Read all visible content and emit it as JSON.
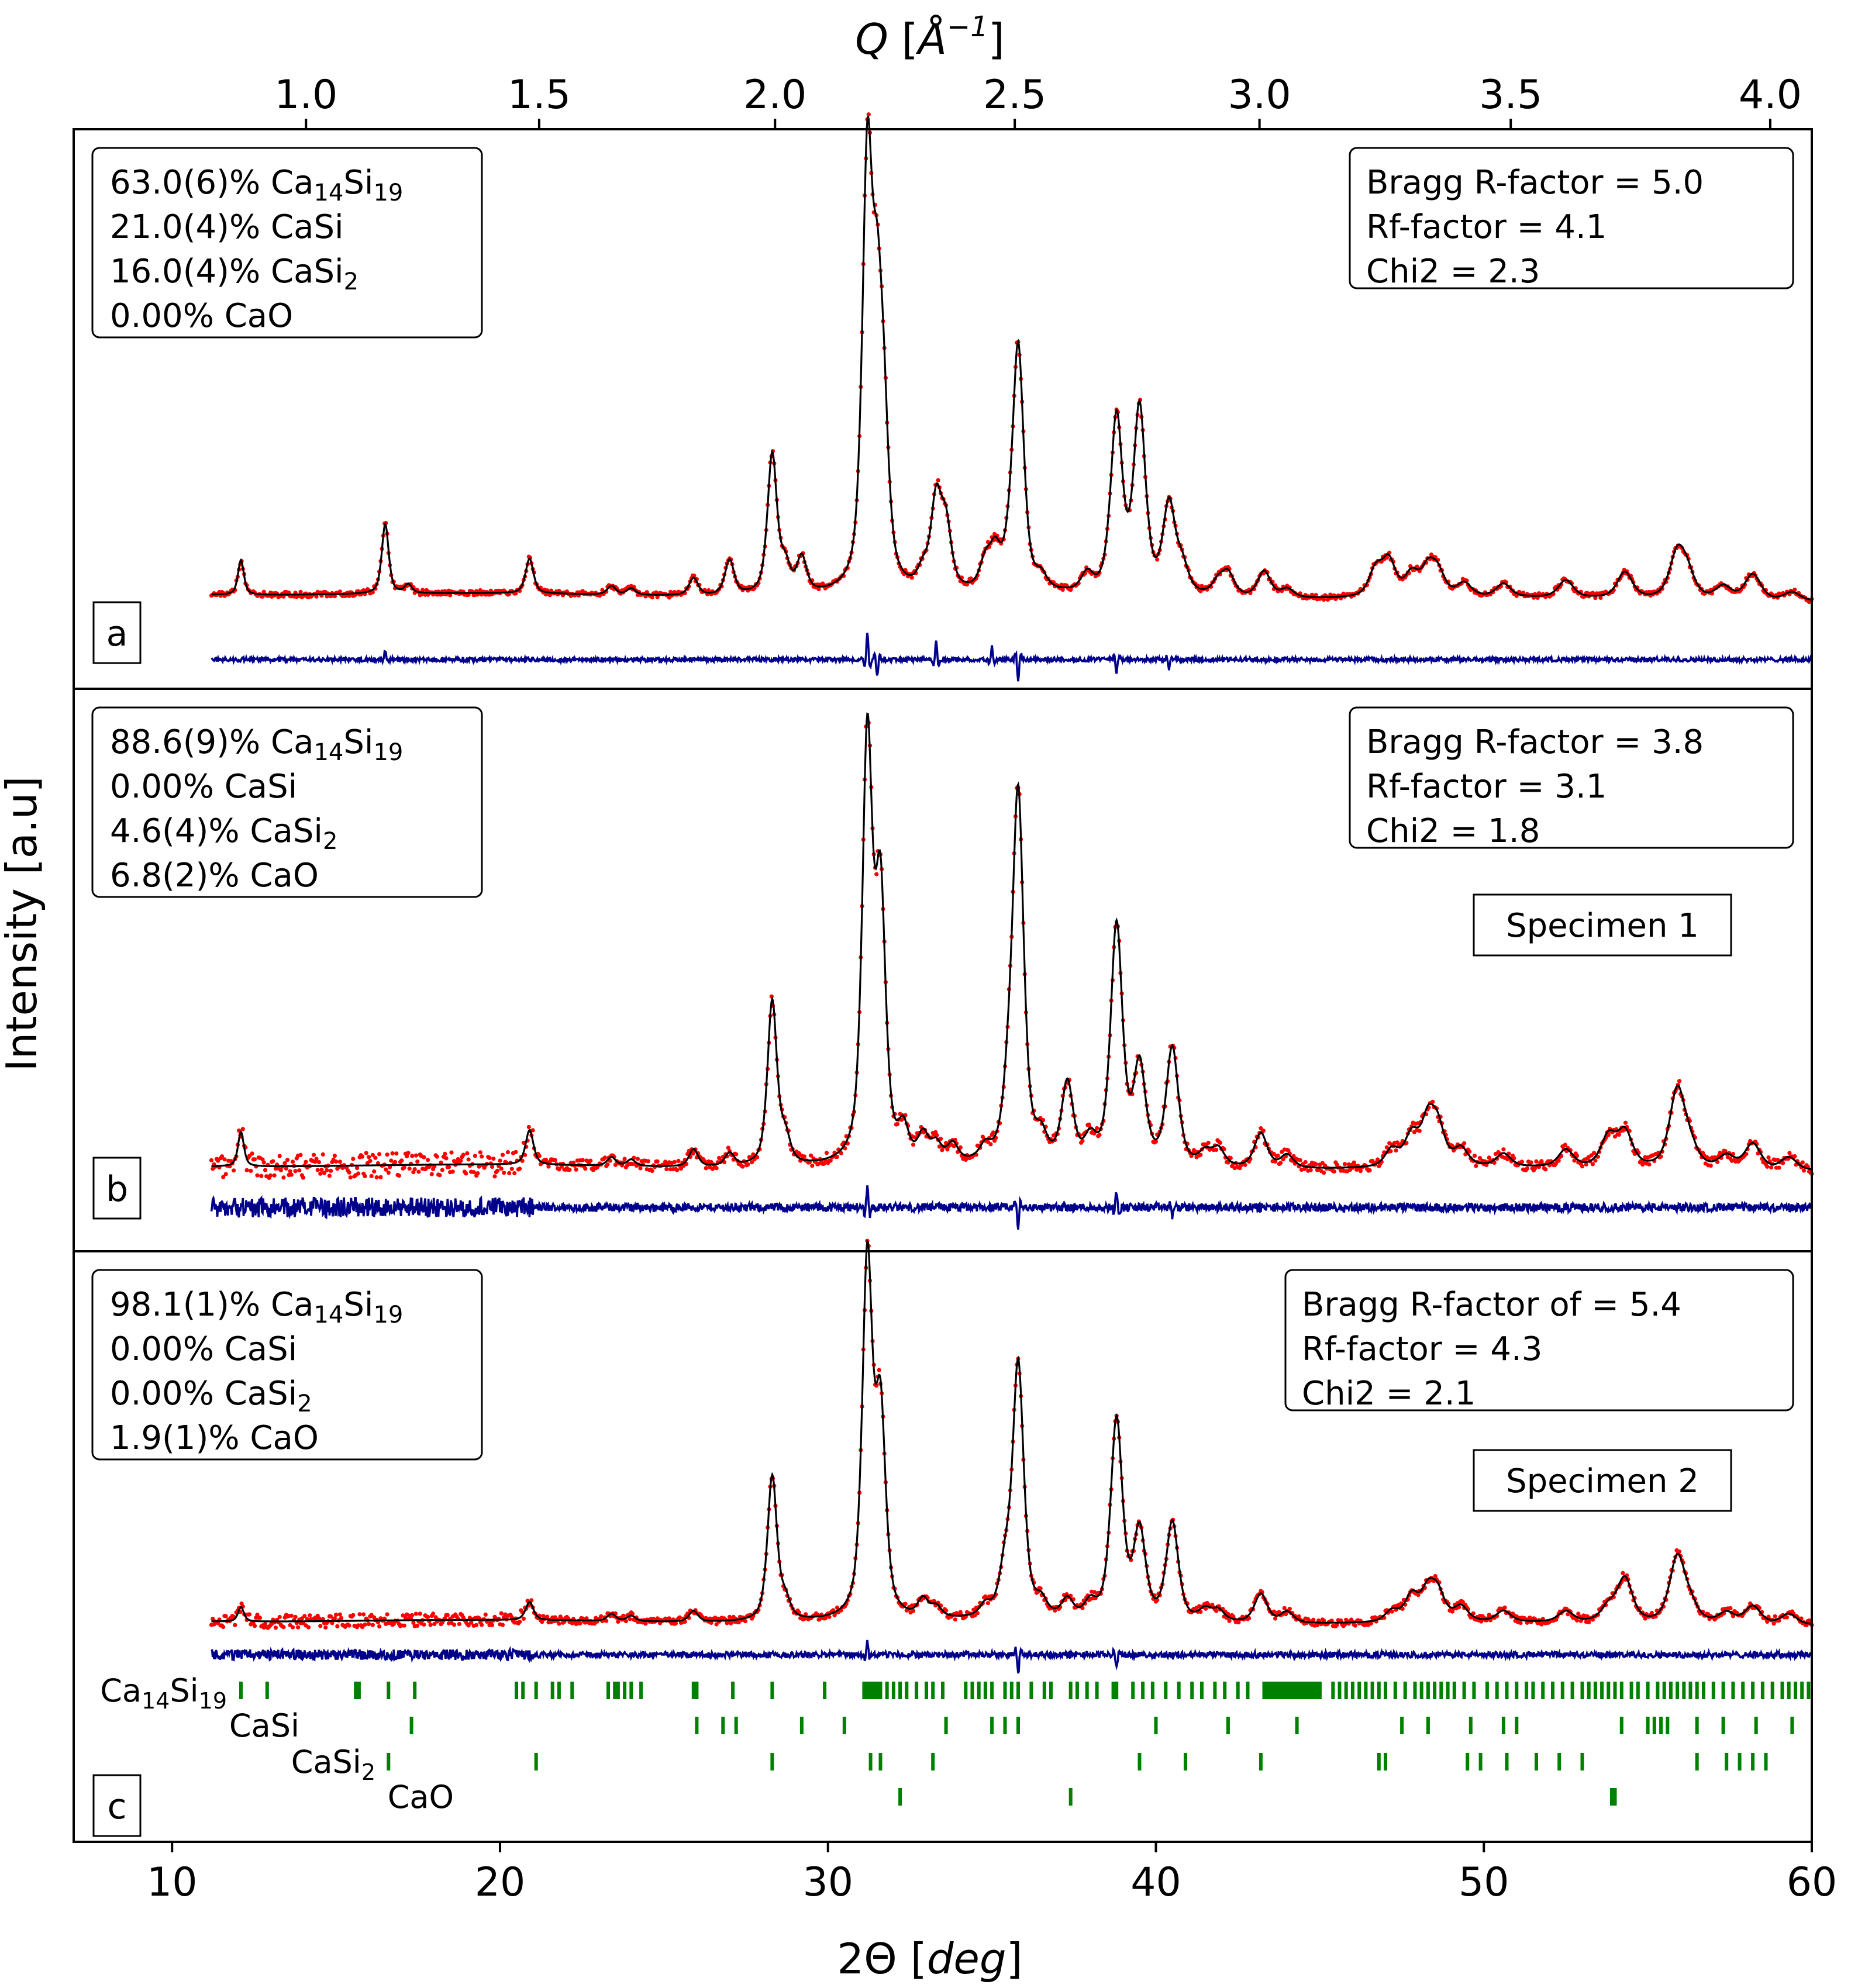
{
  "chart_data": {
    "type": "scatter",
    "title": "",
    "xlabel": "2Θ [deg]",
    "xlabel_top": "Q [Å⁻¹]",
    "ylabel": "Intensity [a.u]",
    "xlim": [
      7,
      60
    ],
    "x_ticks": [
      10,
      20,
      30,
      40,
      50,
      60
    ],
    "x_tick_labels": [
      "10",
      "20",
      "30",
      "40",
      "50",
      "60"
    ],
    "q_ticks": [
      1.0,
      1.5,
      2.0,
      2.5,
      3.0,
      3.5,
      4.0
    ],
    "q_tick_labels": [
      "1.0",
      "1.5",
      "2.0",
      "2.5",
      "3.0",
      "3.5",
      "4.0"
    ],
    "wavelength_angstrom": 1.5406,
    "colors": {
      "observed": "#ff0000",
      "calculated": "#000000",
      "difference": "#00008b",
      "bragg_ticks": "#008000"
    },
    "panels": [
      {
        "letter": "a",
        "phases": [
          {
            "fraction": "63.0(6)% ",
            "formula_base": "Ca",
            "sub1": "14",
            "mid": "Si",
            "sub2": "19"
          },
          {
            "fraction": "21.0(4)% ",
            "formula_base": "CaSi",
            "sub1": "",
            "mid": "",
            "sub2": ""
          },
          {
            "fraction": "16.0(4)% ",
            "formula_base": "CaSi",
            "sub1": "2",
            "mid": "",
            "sub2": ""
          },
          {
            "fraction": "0.00% ",
            "formula_base": "CaO",
            "sub1": "",
            "mid": "",
            "sub2": ""
          }
        ],
        "stats": [
          "Bragg R-factor = 5.0",
          "Rf-factor = 4.1",
          "Chi2 = 2.3"
        ],
        "specimen": "",
        "background": 0.04,
        "noise": 0.006,
        "peaks": [
          [
            12.1,
            0.08
          ],
          [
            16.5,
            0.16
          ],
          [
            17.2,
            0.02
          ],
          [
            20.9,
            0.08
          ],
          [
            23.4,
            0.02
          ],
          [
            24.0,
            0.015
          ],
          [
            25.9,
            0.04
          ],
          [
            27.0,
            0.08
          ],
          [
            28.3,
            0.32
          ],
          [
            28.7,
            0.06
          ],
          [
            29.2,
            0.08
          ],
          [
            31.2,
            0.95
          ],
          [
            31.5,
            0.5
          ],
          [
            31.7,
            0.3
          ],
          [
            32.9,
            0.04
          ],
          [
            33.3,
            0.2
          ],
          [
            33.6,
            0.14
          ],
          [
            34.8,
            0.06
          ],
          [
            35.1,
            0.08
          ],
          [
            35.5,
            0.04
          ],
          [
            35.8,
            0.56
          ],
          [
            36.5,
            0.03
          ],
          [
            37.9,
            0.04
          ],
          [
            38.8,
            0.4
          ],
          [
            39.5,
            0.42
          ],
          [
            40.4,
            0.2
          ],
          [
            40.8,
            0.06
          ],
          [
            41.9,
            0.03
          ],
          [
            42.2,
            0.05
          ],
          [
            43.3,
            0.06
          ],
          [
            44.0,
            0.02
          ],
          [
            46.7,
            0.06
          ],
          [
            47.1,
            0.08
          ],
          [
            47.8,
            0.05
          ],
          [
            48.3,
            0.06
          ],
          [
            48.6,
            0.05
          ],
          [
            49.4,
            0.03
          ],
          [
            50.6,
            0.03
          ],
          [
            52.5,
            0.04
          ],
          [
            54.3,
            0.06
          ],
          [
            55.9,
            0.1
          ],
          [
            56.2,
            0.05
          ],
          [
            57.3,
            0.03
          ],
          [
            58.2,
            0.06
          ],
          [
            59.4,
            0.02
          ]
        ],
        "diff_spikes": [
          [
            16.5,
            0.02
          ],
          [
            31.2,
            0.06
          ],
          [
            31.5,
            -0.04
          ],
          [
            33.3,
            0.04
          ],
          [
            35.0,
            0.03
          ],
          [
            35.8,
            -0.05
          ],
          [
            38.8,
            -0.03
          ],
          [
            40.4,
            -0.02
          ]
        ]
      },
      {
        "letter": "b",
        "phases": [
          {
            "fraction": "88.6(9)% ",
            "formula_base": "Ca",
            "sub1": "14",
            "mid": "Si",
            "sub2": "19"
          },
          {
            "fraction": "0.00% ",
            "formula_base": "CaSi",
            "sub1": "",
            "mid": "",
            "sub2": ""
          },
          {
            "fraction": "4.6(4)% ",
            "formula_base": "CaSi",
            "sub1": "2",
            "mid": "",
            "sub2": ""
          },
          {
            "fraction": "6.8(2)% ",
            "formula_base": "CaO",
            "sub1": "",
            "mid": "",
            "sub2": ""
          }
        ],
        "stats": [
          "Bragg R-factor = 3.8",
          "Rf-factor = 3.1",
          "Chi2 = 1.8"
        ],
        "specimen": "Specimen 1",
        "background": 0.03,
        "noise": 0.012,
        "peaks": [
          [
            12.1,
            0.08
          ],
          [
            20.9,
            0.08
          ],
          [
            23.4,
            0.02
          ],
          [
            24.0,
            0.015
          ],
          [
            25.9,
            0.04
          ],
          [
            27.0,
            0.03
          ],
          [
            28.3,
            0.38
          ],
          [
            28.7,
            0.06
          ],
          [
            31.2,
            0.97
          ],
          [
            31.6,
            0.6
          ],
          [
            32.3,
            0.07
          ],
          [
            32.9,
            0.06
          ],
          [
            33.3,
            0.04
          ],
          [
            33.8,
            0.04
          ],
          [
            34.8,
            0.03
          ],
          [
            35.5,
            0.12
          ],
          [
            35.8,
            0.84
          ],
          [
            36.5,
            0.05
          ],
          [
            37.3,
            0.18
          ],
          [
            38.0,
            0.05
          ],
          [
            38.8,
            0.55
          ],
          [
            39.5,
            0.22
          ],
          [
            40.5,
            0.27
          ],
          [
            41.5,
            0.03
          ],
          [
            41.9,
            0.04
          ],
          [
            43.2,
            0.08
          ],
          [
            44.0,
            0.03
          ],
          [
            47.2,
            0.04
          ],
          [
            47.8,
            0.07
          ],
          [
            48.3,
            0.1
          ],
          [
            48.6,
            0.08
          ],
          [
            49.3,
            0.04
          ],
          [
            50.6,
            0.03
          ],
          [
            52.5,
            0.04
          ],
          [
            53.8,
            0.07
          ],
          [
            54.3,
            0.08
          ],
          [
            55.9,
            0.18
          ],
          [
            56.3,
            0.04
          ],
          [
            57.4,
            0.03
          ],
          [
            58.2,
            0.06
          ],
          [
            59.3,
            0.03
          ]
        ],
        "diff_spikes": [
          [
            31.2,
            0.05
          ],
          [
            35.8,
            -0.05
          ],
          [
            38.8,
            0.04
          ],
          [
            40.5,
            -0.02
          ]
        ]
      },
      {
        "letter": "c",
        "phases": [
          {
            "fraction": "98.1(1)% ",
            "formula_base": "Ca",
            "sub1": "14",
            "mid": "Si",
            "sub2": "19"
          },
          {
            "fraction": "0.00% ",
            "formula_base": "CaSi",
            "sub1": "",
            "mid": "",
            "sub2": ""
          },
          {
            "fraction": "0.00% ",
            "formula_base": "CaSi",
            "sub1": "2",
            "mid": "",
            "sub2": ""
          },
          {
            "fraction": "1.9(1)% ",
            "formula_base": "CaO",
            "sub1": "",
            "mid": "",
            "sub2": ""
          }
        ],
        "stats": [
          "Bragg R-factor of  = 5.4",
          "Rf-factor = 4.3",
          "Chi2 = 2.1"
        ],
        "specimen": "Specimen 2",
        "background": 0.03,
        "noise": 0.01,
        "peaks": [
          [
            12.1,
            0.04
          ],
          [
            20.9,
            0.05
          ],
          [
            23.4,
            0.02
          ],
          [
            24.0,
            0.015
          ],
          [
            25.9,
            0.03
          ],
          [
            28.3,
            0.4
          ],
          [
            28.7,
            0.05
          ],
          [
            31.2,
            0.98
          ],
          [
            31.6,
            0.55
          ],
          [
            32.9,
            0.05
          ],
          [
            33.3,
            0.03
          ],
          [
            34.8,
            0.03
          ],
          [
            35.4,
            0.12
          ],
          [
            35.8,
            0.7
          ],
          [
            36.5,
            0.04
          ],
          [
            37.3,
            0.05
          ],
          [
            38.0,
            0.04
          ],
          [
            38.8,
            0.55
          ],
          [
            39.5,
            0.24
          ],
          [
            40.5,
            0.27
          ],
          [
            41.5,
            0.03
          ],
          [
            41.9,
            0.03
          ],
          [
            43.2,
            0.08
          ],
          [
            44.0,
            0.03
          ],
          [
            47.2,
            0.03
          ],
          [
            47.8,
            0.07
          ],
          [
            48.3,
            0.08
          ],
          [
            48.6,
            0.07
          ],
          [
            49.3,
            0.04
          ],
          [
            50.6,
            0.03
          ],
          [
            52.5,
            0.03
          ],
          [
            53.8,
            0.04
          ],
          [
            54.3,
            0.12
          ],
          [
            55.9,
            0.18
          ],
          [
            56.3,
            0.04
          ],
          [
            57.4,
            0.03
          ],
          [
            58.2,
            0.05
          ],
          [
            59.3,
            0.03
          ]
        ],
        "diff_spikes": [
          [
            31.2,
            0.04
          ],
          [
            35.8,
            -0.05
          ],
          [
            38.8,
            -0.04
          ]
        ]
      }
    ],
    "bragg_reflections": [
      {
        "phase_base": "Ca",
        "sub1": "14",
        "mid": "Si",
        "sub2": "19",
        "positions": [
          12.1,
          12.9,
          15.6,
          15.7,
          16.6,
          17.4,
          20.5,
          20.7,
          21.1,
          21.6,
          21.8,
          22.2,
          23.3,
          23.5,
          23.6,
          23.8,
          24.0,
          24.3,
          25.9,
          26.0,
          27.1,
          28.3,
          29.9,
          31.1,
          31.2,
          31.3,
          31.4,
          31.5,
          31.6,
          31.8,
          32.0,
          32.2,
          32.4,
          32.7,
          33.0,
          33.2,
          33.5,
          34.2,
          34.4,
          34.6,
          34.8,
          35.0,
          35.4,
          35.6,
          35.8,
          36.2,
          36.6,
          36.8,
          37.4,
          37.6,
          37.9,
          38.2,
          38.7,
          38.8,
          39.3,
          39.6,
          39.9,
          40.3,
          40.7,
          41.1,
          41.4,
          41.8,
          42.1,
          42.5,
          42.8,
          43.3,
          43.4,
          43.5,
          43.6,
          43.7,
          43.8,
          43.9,
          44.0,
          44.1,
          44.2,
          44.3,
          44.4,
          44.5,
          44.6,
          44.7,
          44.8,
          44.9,
          45.0,
          45.4,
          45.6,
          45.8,
          46.0,
          46.2,
          46.4,
          46.6,
          46.8,
          47.0,
          47.3,
          47.6,
          47.9,
          48.1,
          48.3,
          48.5,
          48.7,
          48.9,
          49.1,
          49.4,
          49.7,
          50.1,
          50.4,
          50.7,
          51.0,
          51.3,
          51.5,
          51.8,
          52.1,
          52.4,
          52.7,
          53.0,
          53.2,
          53.4,
          53.6,
          53.8,
          54.0,
          54.2,
          54.5,
          54.7,
          55.0,
          55.3,
          55.5,
          55.7,
          55.9,
          56.1,
          56.3,
          56.5,
          56.7,
          57.0,
          57.3,
          57.6,
          57.9,
          58.2,
          58.5,
          58.8,
          59.1,
          59.3,
          59.5,
          59.7,
          59.9
        ]
      },
      {
        "phase_base": "CaSi",
        "sub1": "",
        "mid": "",
        "sub2": "",
        "positions": [
          17.3,
          26.0,
          26.8,
          27.2,
          29.2,
          30.5,
          33.6,
          35.0,
          35.4,
          35.8,
          40.0,
          42.2,
          44.3,
          47.5,
          48.3,
          49.6,
          50.6,
          51.0,
          54.2,
          55.0,
          55.2,
          55.4,
          55.6,
          56.5,
          57.3,
          58.3,
          59.4
        ]
      },
      {
        "phase_base": "CaSi",
        "sub1": "2",
        "mid": "",
        "sub2": "",
        "positions": [
          16.6,
          21.1,
          28.3,
          31.3,
          31.6,
          33.2,
          39.5,
          40.9,
          43.2,
          46.8,
          47.0,
          49.5,
          49.9,
          50.7,
          51.6,
          52.3,
          53.0,
          56.5,
          57.4,
          57.8,
          58.2,
          58.6
        ]
      },
      {
        "phase_base": "CaO",
        "sub1": "",
        "mid": "",
        "sub2": "",
        "positions": [
          32.2,
          37.4,
          53.9,
          54.0
        ]
      }
    ]
  }
}
